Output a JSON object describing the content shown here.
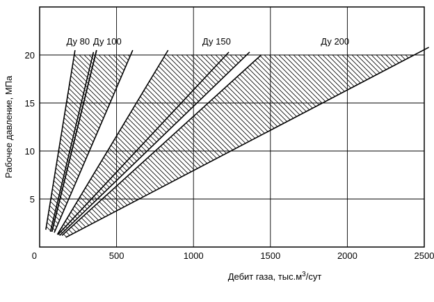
{
  "chart_data": {
    "type": "area",
    "title": "",
    "xlabel": "Дебит газа, тыс.м³/сут",
    "ylabel": "Рабочее давление, МПа",
    "xlim": [
      0,
      2500
    ],
    "ylim": [
      0,
      25
    ],
    "x_ticks": [
      0,
      500,
      1000,
      1500,
      2000,
      2500
    ],
    "y_ticks": [
      5,
      10,
      15,
      20
    ],
    "grid": true,
    "shaded_ceiling_y": 20,
    "series": [
      {
        "name": "Ду 80",
        "boundaries": [
          [
            [
              40,
              1.8
            ],
            [
              230,
              20.5
            ]
          ],
          [
            [
              80,
              1.6
            ],
            [
              370,
              20.5
            ]
          ]
        ],
        "divider": [
          [
            70,
            1.6
          ],
          [
            350,
            20.3
          ]
        ]
      },
      {
        "name": "Ду 100",
        "boundaries": [
          [
            [
              80,
              1.6
            ],
            [
              370,
              20.5
            ]
          ],
          [
            [
              95,
              1.5
            ],
            [
              605,
              20.5
            ]
          ]
        ]
      },
      {
        "name": "Ду 150",
        "boundaries": [
          [
            [
              115,
              1.3
            ],
            [
              835,
              20.5
            ]
          ],
          [
            [
              130,
              1.2
            ],
            [
              1365,
              20.3
            ]
          ]
        ],
        "divider": [
          [
            120,
            1.3
          ],
          [
            1230,
            20.3
          ]
        ]
      },
      {
        "name": "Ду 200",
        "boundaries": [
          [
            [
              145,
              1.2
            ],
            [
              1440,
              20.0
            ]
          ],
          [
            [
              170,
              1.0
            ],
            [
              2530,
              20.8
            ]
          ]
        ]
      }
    ]
  }
}
